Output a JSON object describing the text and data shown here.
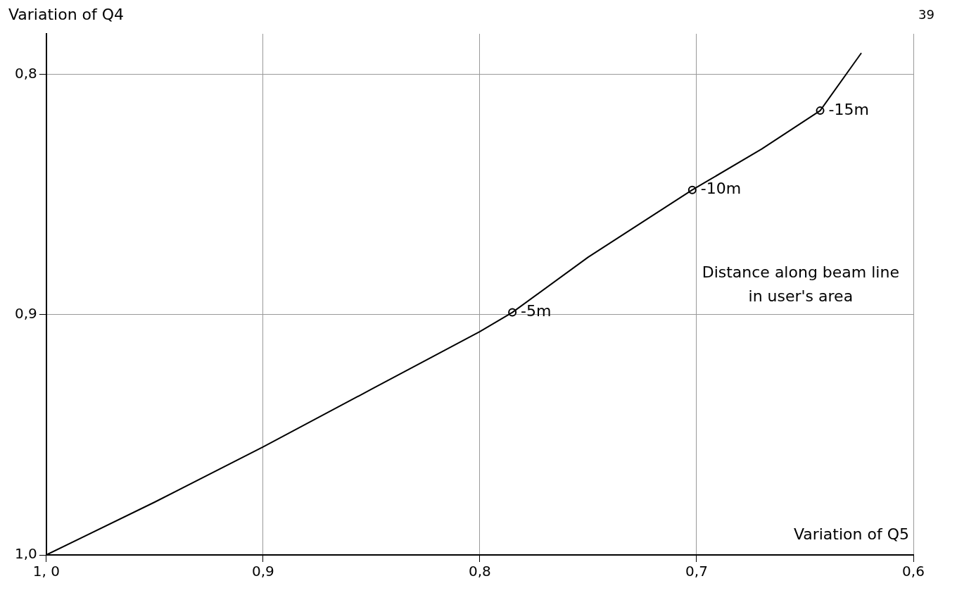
{
  "chart_data": {
    "type": "line",
    "xlabel": "Variation of Q5",
    "ylabel": "Variation of Q4",
    "xlim": [
      1.0,
      0.6
    ],
    "ylim": [
      1.0,
      0.783
    ],
    "xticks": [
      {
        "value": 1.0,
        "label": "1, 0"
      },
      {
        "value": 0.9,
        "label": "0,9"
      },
      {
        "value": 0.8,
        "label": "0,8"
      },
      {
        "value": 0.7,
        "label": "0,7"
      },
      {
        "value": 0.6,
        "label": "0,6"
      }
    ],
    "yticks": [
      {
        "value": 1.0,
        "label": "1,0"
      },
      {
        "value": 0.9,
        "label": "0,9"
      },
      {
        "value": 0.8,
        "label": "0,8"
      }
    ],
    "grid": true,
    "legend": false,
    "series": [
      {
        "color": "#000000",
        "marker": "none",
        "x": [
          1.0,
          0.95,
          0.9,
          0.85,
          0.8,
          0.785,
          0.75,
          0.702,
          0.67,
          0.643,
          0.624
        ],
        "values": [
          1.0,
          0.978,
          0.955,
          0.931,
          0.907,
          0.899,
          0.876,
          0.848,
          0.831,
          0.815,
          0.791
        ]
      },
      {
        "type": "scatter",
        "color": "#000000",
        "marker": "circle",
        "x": [
          0.785,
          0.702,
          0.643
        ],
        "values": [
          0.899,
          0.848,
          0.815
        ]
      }
    ],
    "annotations": [
      {
        "text": "-5m",
        "x": 0.785,
        "y": 0.899
      },
      {
        "text": "-10m",
        "x": 0.702,
        "y": 0.848
      },
      {
        "text": "-15m",
        "x": 0.643,
        "y": 0.815
      },
      "Distance along beam line in user's area",
      "39"
    ]
  }
}
